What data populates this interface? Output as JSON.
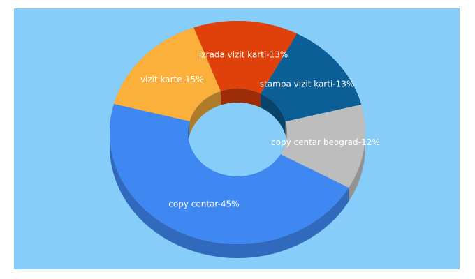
{
  "chart_data": {
    "type": "donut3d",
    "values": [
      13,
      13,
      12,
      45,
      15
    ],
    "value_labels": [
      "izrada vizit karti-13%",
      "stampa vizit karti-13%",
      "copy centar beograd-12%",
      "copy centar-45%",
      "vizit karte-15%"
    ],
    "colors": [
      "#e0400a",
      "#0c5f96",
      "#bdbdbd",
      "#3f88f2",
      "#fbb03b"
    ]
  }
}
